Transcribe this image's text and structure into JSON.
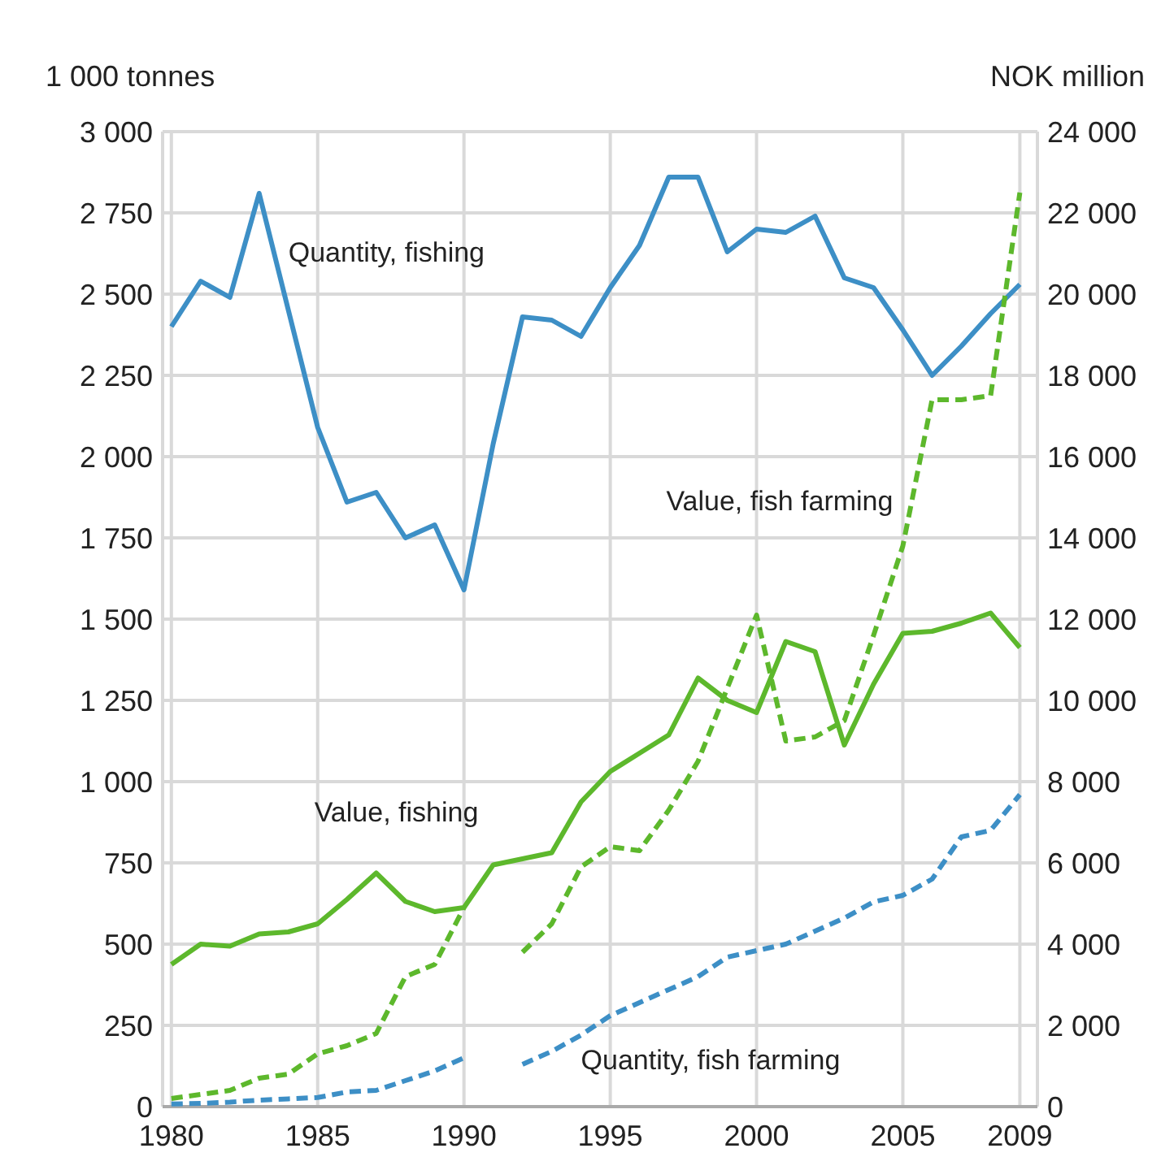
{
  "chart_data": {
    "type": "line",
    "ylabel": "1 000 tonnes",
    "y2label": "NOK million",
    "x": [
      1980,
      1981,
      1982,
      1983,
      1984,
      1985,
      1986,
      1987,
      1988,
      1989,
      1990,
      1991,
      1992,
      1993,
      1994,
      1995,
      1996,
      1997,
      1998,
      1999,
      2000,
      2001,
      2002,
      2003,
      2004,
      2005,
      2006,
      2007,
      2008,
      2009
    ],
    "series": [
      {
        "name": "Quantity, fishing",
        "color": "#3d8fc6",
        "line_style": "solid",
        "values": [
          2400,
          2540,
          2490,
          2810,
          2450,
          2090,
          1860,
          1890,
          1750,
          1790,
          1590,
          2040,
          2430,
          2420,
          2370,
          2520,
          2650,
          2860,
          2860,
          2630,
          2700,
          2690,
          2740,
          2550,
          2520,
          2390,
          2250,
          2340,
          2440,
          2530
        ]
      },
      {
        "name": "Value, fish farming",
        "color": "#5db82c",
        "line_style": "dashed",
        "axis": "y2",
        "values": [
          200,
          300,
          400,
          700,
          800,
          1300,
          1500,
          1800,
          3200,
          3500,
          4900,
          null,
          3800,
          4500,
          5900,
          6400,
          6300,
          7300,
          8500,
          10300,
          12100,
          9000,
          9100,
          9500,
          11600,
          13800,
          17400,
          17400,
          17500,
          22500
        ]
      },
      {
        "name": "Value, fishing",
        "color": "#5db82c",
        "line_style": "solid",
        "axis": "y2",
        "values": [
          3500,
          4000,
          3950,
          4250,
          4300,
          4500,
          5100,
          5750,
          5050,
          4800,
          4900,
          5950,
          6100,
          6250,
          7500,
          8250,
          8700,
          9150,
          10550,
          10000,
          9700,
          11450,
          11200,
          8900,
          10400,
          11650,
          11700,
          11900,
          12150,
          11300
        ]
      },
      {
        "name": "Quantity, fish farming",
        "color": "#3d8fc6",
        "line_style": "dashed",
        "values": [
          8,
          10,
          14,
          20,
          24,
          28,
          45,
          50,
          80,
          110,
          150,
          null,
          130,
          170,
          220,
          280,
          320,
          360,
          400,
          460,
          480,
          500,
          540,
          580,
          630,
          650,
          700,
          830,
          850,
          960
        ]
      }
    ],
    "xlim": [
      1979.7,
      2009.6
    ],
    "xticks": [
      1980,
      1985,
      1990,
      1995,
      2000,
      2005,
      2009
    ],
    "ylim": [
      0,
      3000
    ],
    "yticks": [
      0,
      250,
      500,
      750,
      {
        "value": 1000,
        "label": "1 000"
      },
      {
        "value": 1250,
        "label": "1 250"
      },
      {
        "value": 1500,
        "label": "1 500"
      },
      {
        "value": 1750,
        "label": "1 750"
      },
      {
        "value": 2000,
        "label": "2 000"
      },
      {
        "value": 2250,
        "label": "2 250"
      },
      {
        "value": 2500,
        "label": "2 500"
      },
      {
        "value": 2750,
        "label": "2 750"
      },
      {
        "value": 3000,
        "label": "3 000"
      }
    ],
    "y2lim": [
      0,
      24000
    ],
    "y2ticks": [
      0,
      {
        "value": 2000,
        "label": "2 000"
      },
      {
        "value": 4000,
        "label": "4 000"
      },
      {
        "value": 6000,
        "label": "6 000"
      },
      {
        "value": 8000,
        "label": "8 000"
      },
      {
        "value": 10000,
        "label": "10 000"
      },
      {
        "value": 12000,
        "label": "12 000"
      },
      {
        "value": 14000,
        "label": "14 000"
      },
      {
        "value": 16000,
        "label": "16 000"
      },
      {
        "value": 18000,
        "label": "18 000"
      },
      {
        "value": 20000,
        "label": "20 000"
      },
      {
        "value": 22000,
        "label": "22 000"
      },
      {
        "value": 24000,
        "label": "24 000"
      }
    ],
    "grid": true,
    "marker": "none"
  }
}
